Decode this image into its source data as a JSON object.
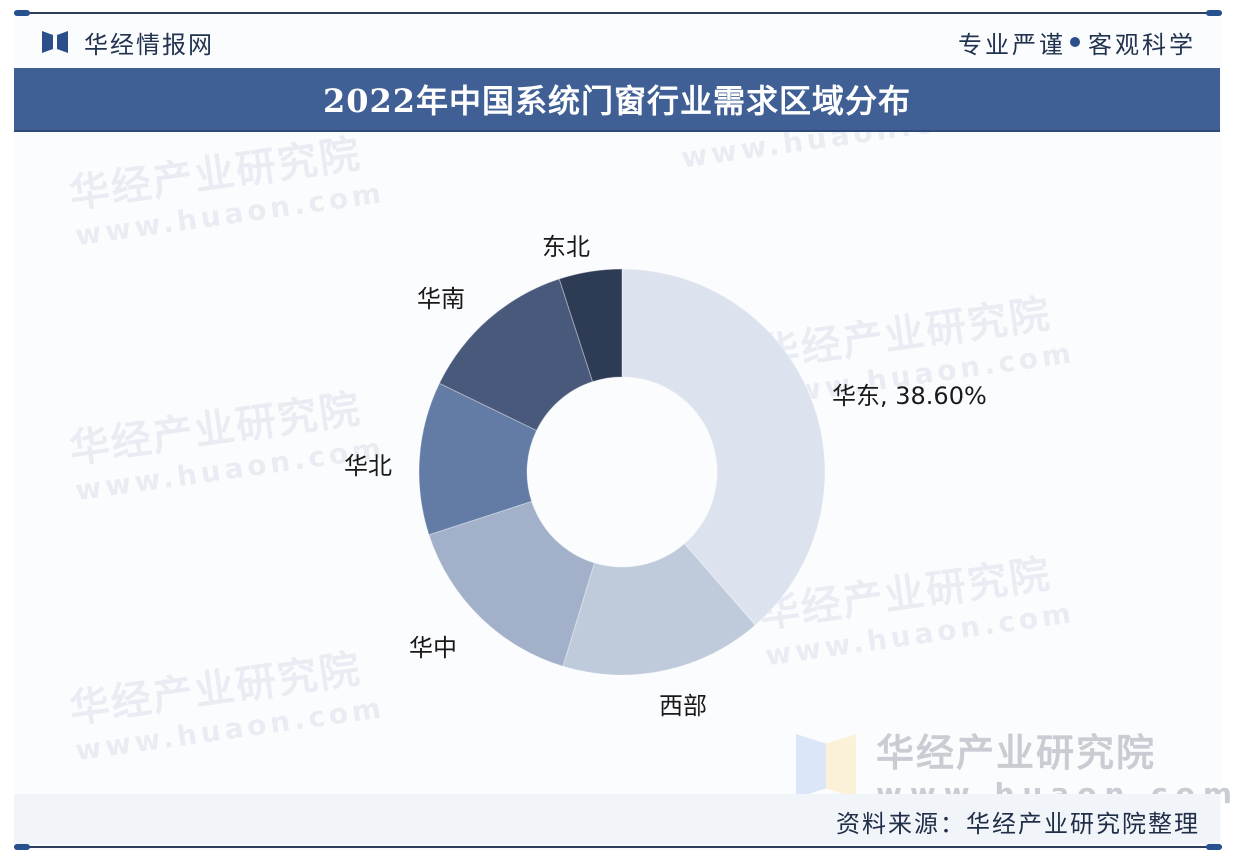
{
  "header": {
    "brand_name": "华经情报网",
    "slogan_left": "专业严谨",
    "slogan_right": "客观科学"
  },
  "title": "2022年中国系统门窗行业需求区域分布",
  "watermark": {
    "cn": "华经产业研究院",
    "en": "www.huaon.com"
  },
  "footer": {
    "source": "资料来源：华经产业研究院整理"
  },
  "colors": {
    "title_bar": "#3f5f95",
    "huadong": "#dde3ee",
    "xibu": "#bfcadb",
    "huazhong": "#a2b1c9",
    "huabei": "#627ca6",
    "huanan": "#48597b",
    "dongbei": "#2e3b55"
  },
  "chart_data": {
    "type": "pie",
    "variant": "donut",
    "title": "2022年中国系统门窗行业需求区域分布",
    "start_angle": "12 o'clock, clockwise",
    "categories": [
      "华东",
      "西部",
      "华中",
      "华北",
      "华南",
      "东北"
    ],
    "values": [
      38.6,
      16.1,
      15.3,
      12.2,
      12.8,
      5.0
    ],
    "unit": "%",
    "labels": [
      "华东, 38.60%",
      "西部",
      "华中",
      "华北",
      "华南",
      "东北"
    ],
    "note": "Only the 华东 value (38.60%) is printed on the chart; the other values are estimated from arc geometry.",
    "legend": "none (outside slice labels)"
  }
}
